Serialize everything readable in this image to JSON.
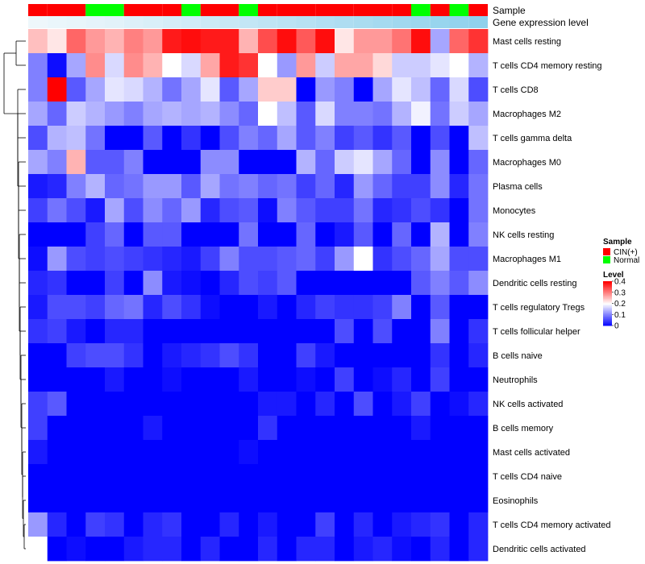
{
  "chart_data": {
    "type": "heatmap",
    "annotation_labels": [
      "Sample",
      "Gene expression level"
    ],
    "sample_groups": [
      "CIN",
      "CIN",
      "CIN",
      "N",
      "N",
      "CIN",
      "CIN",
      "CIN",
      "N",
      "CIN",
      "CIN",
      "N",
      "CIN",
      "CIN",
      "CIN",
      "CIN",
      "CIN",
      "CIN",
      "CIN",
      "CIN",
      "N",
      "CIN",
      "N",
      "CIN"
    ],
    "expression_annotation": [
      0.05,
      0.08,
      0.1,
      0.13,
      0.16,
      0.2,
      0.24,
      0.28,
      0.32,
      0.36,
      0.4,
      0.44,
      0.48,
      0.52,
      0.56,
      0.6,
      0.64,
      0.68,
      0.72,
      0.76,
      0.8,
      0.84,
      0.88,
      0.92
    ],
    "rows": [
      "Mast cells resting",
      "T cells CD4 memory resting",
      "T cells CD8",
      "Macrophages M2",
      "T cells gamma delta",
      "Macrophages M0",
      "Plasma cells",
      "Monocytes",
      "NK cells resting",
      "Macrophages M1",
      "Dendritic cells resting",
      "T cells regulatory  Tregs",
      "T cells follicular helper",
      "B cells naive",
      "Neutrophils",
      "NK cells activated",
      "B cells memory",
      "Mast cells activated",
      "T cells CD4 naive",
      "Eosinophils",
      "T cells CD4 memory activated",
      "Dendritic cells activated"
    ],
    "values": [
      [
        0.25,
        0.22,
        0.32,
        0.28,
        0.26,
        0.3,
        0.28,
        0.38,
        0.39,
        0.38,
        0.38,
        0.26,
        0.34,
        0.39,
        0.33,
        0.39,
        0.22,
        0.28,
        0.28,
        0.31,
        0.39,
        0.13,
        0.32,
        0.36
      ],
      [
        0.1,
        0.01,
        0.13,
        0.29,
        0.17,
        0.29,
        0.26,
        0.2,
        0.17,
        0.27,
        0.38,
        0.36,
        0.2,
        0.12,
        0.28,
        0.16,
        0.27,
        0.27,
        0.23,
        0.16,
        0.16,
        0.18,
        0.2,
        0.14
      ],
      [
        0.1,
        0.4,
        0.07,
        0.13,
        0.18,
        0.17,
        0.14,
        0.09,
        0.13,
        0.18,
        0.07,
        0.13,
        0.24,
        0.24,
        0.0,
        0.12,
        0.1,
        0.0,
        0.13,
        0.18,
        0.15,
        0.08,
        0.17,
        0.06
      ],
      [
        0.13,
        0.08,
        0.16,
        0.14,
        0.12,
        0.1,
        0.13,
        0.14,
        0.13,
        0.14,
        0.11,
        0.08,
        0.2,
        0.15,
        0.07,
        0.17,
        0.1,
        0.1,
        0.09,
        0.14,
        0.19,
        0.09,
        0.16,
        0.13
      ],
      [
        0.06,
        0.14,
        0.15,
        0.09,
        0.0,
        0.0,
        0.07,
        0.0,
        0.04,
        0.0,
        0.06,
        0.1,
        0.08,
        0.13,
        0.07,
        0.1,
        0.05,
        0.07,
        0.04,
        0.07,
        0.0,
        0.06,
        0.0,
        0.15
      ],
      [
        0.13,
        0.1,
        0.26,
        0.07,
        0.07,
        0.1,
        0.0,
        0.0,
        0.0,
        0.11,
        0.11,
        0.0,
        0.0,
        0.0,
        0.14,
        0.08,
        0.16,
        0.18,
        0.13,
        0.08,
        0.0,
        0.11,
        0.0,
        0.08
      ],
      [
        0.02,
        0.03,
        0.1,
        0.14,
        0.08,
        0.09,
        0.12,
        0.12,
        0.07,
        0.13,
        0.09,
        0.1,
        0.08,
        0.09,
        0.05,
        0.08,
        0.03,
        0.12,
        0.08,
        0.05,
        0.05,
        0.11,
        0.03,
        0.09
      ],
      [
        0.05,
        0.09,
        0.06,
        0.02,
        0.13,
        0.06,
        0.11,
        0.08,
        0.12,
        0.03,
        0.06,
        0.07,
        0.01,
        0.1,
        0.07,
        0.05,
        0.05,
        0.09,
        0.03,
        0.04,
        0.06,
        0.04,
        0.0,
        0.09
      ],
      [
        0.0,
        0.0,
        0.0,
        0.05,
        0.08,
        0.0,
        0.07,
        0.07,
        0.0,
        0.0,
        0.0,
        0.09,
        0.0,
        0.0,
        0.08,
        0.0,
        0.02,
        0.07,
        0.0,
        0.08,
        0.0,
        0.14,
        0.0,
        0.1
      ],
      [
        0.01,
        0.12,
        0.06,
        0.05,
        0.06,
        0.05,
        0.04,
        0.03,
        0.02,
        0.05,
        0.1,
        0.06,
        0.06,
        0.07,
        0.08,
        0.05,
        0.12,
        0.2,
        0.04,
        0.06,
        0.08,
        0.13,
        0.06,
        0.06
      ],
      [
        0.03,
        0.04,
        0.0,
        0.0,
        0.05,
        0.0,
        0.11,
        0.02,
        0.01,
        0.0,
        0.03,
        0.06,
        0.05,
        0.07,
        0.0,
        0.0,
        0.0,
        0.0,
        0.0,
        0.0,
        0.07,
        0.1,
        0.07,
        0.11
      ],
      [
        0.02,
        0.06,
        0.06,
        0.05,
        0.08,
        0.09,
        0.03,
        0.06,
        0.04,
        0.01,
        0.0,
        0.0,
        0.02,
        0.0,
        0.03,
        0.05,
        0.04,
        0.04,
        0.05,
        0.1,
        0.0,
        0.07,
        0.0,
        0.0
      ],
      [
        0.04,
        0.05,
        0.02,
        0.0,
        0.03,
        0.03,
        0.0,
        0.0,
        0.0,
        0.0,
        0.0,
        0.0,
        0.0,
        0.0,
        0.0,
        0.0,
        0.06,
        0.0,
        0.06,
        0.0,
        0.0,
        0.1,
        0.0,
        0.04
      ],
      [
        0.0,
        0.0,
        0.05,
        0.06,
        0.06,
        0.04,
        0.0,
        0.02,
        0.03,
        0.04,
        0.06,
        0.04,
        0.0,
        0.0,
        0.05,
        0.02,
        0.0,
        0.0,
        0.0,
        0.0,
        0.0,
        0.04,
        0.0,
        0.03
      ],
      [
        0.0,
        0.0,
        0.0,
        0.0,
        0.02,
        0.0,
        0.0,
        0.01,
        0.0,
        0.0,
        0.0,
        0.02,
        0.0,
        0.0,
        0.01,
        0.0,
        0.05,
        0.0,
        0.01,
        0.03,
        0.0,
        0.05,
        0.0,
        0.0
      ],
      [
        0.05,
        0.07,
        0.0,
        0.0,
        0.0,
        0.0,
        0.0,
        0.0,
        0.0,
        0.0,
        0.0,
        0.0,
        0.02,
        0.02,
        0.0,
        0.03,
        0.0,
        0.06,
        0.0,
        0.02,
        0.05,
        0.0,
        0.01,
        0.03
      ],
      [
        0.05,
        0.0,
        0.0,
        0.0,
        0.0,
        0.0,
        0.02,
        0.0,
        0.0,
        0.0,
        0.0,
        0.0,
        0.04,
        0.0,
        0.0,
        0.0,
        0.0,
        0.0,
        0.0,
        0.0,
        0.02,
        0.0,
        0.0,
        0.0
      ],
      [
        0.02,
        0.0,
        0.0,
        0.0,
        0.0,
        0.0,
        0.0,
        0.0,
        0.0,
        0.0,
        0.0,
        0.01,
        0.0,
        0.0,
        0.0,
        0.0,
        0.0,
        0.0,
        0.0,
        0.0,
        0.0,
        0.0,
        0.0,
        0.0
      ],
      [
        0.0,
        0.0,
        0.0,
        0.0,
        0.0,
        0.0,
        0.0,
        0.0,
        0.0,
        0.0,
        0.0,
        0.0,
        0.0,
        0.0,
        0.0,
        0.0,
        0.0,
        0.0,
        0.0,
        0.0,
        0.0,
        0.0,
        0.0,
        0.0
      ],
      [
        0.0,
        0.0,
        0.0,
        0.0,
        0.0,
        0.0,
        0.0,
        0.0,
        0.0,
        0.0,
        0.0,
        0.0,
        0.0,
        0.0,
        0.0,
        0.0,
        0.0,
        0.0,
        0.0,
        0.0,
        0.0,
        0.0,
        0.0,
        0.0
      ],
      [
        0.12,
        0.03,
        0.0,
        0.05,
        0.04,
        0.0,
        0.03,
        0.04,
        0.0,
        0.0,
        0.03,
        0.0,
        0.02,
        0.0,
        0.0,
        0.05,
        0.0,
        0.03,
        0.0,
        0.02,
        0.03,
        0.04,
        0.0,
        0.03
      ],
      [
        0.2,
        0.0,
        0.01,
        0.0,
        0.0,
        0.02,
        0.03,
        0.03,
        0.0,
        0.03,
        0.0,
        0.0,
        0.03,
        0.0,
        0.03,
        0.03,
        0.0,
        0.02,
        0.03,
        0.01,
        0.0,
        0.03,
        0.0,
        0.03
      ]
    ],
    "colors": {
      "low": "#0000ff",
      "mid": "#ffffff",
      "high": "#ff0000",
      "cin": "#ff0000",
      "normal": "#00ff00",
      "expr_low": "#f3f9fc",
      "expr_high": "#87ceeb"
    },
    "legend": {
      "sample_title": "Sample",
      "sample_entries": [
        {
          "label": "CIN(+)",
          "color": "#ff0000"
        },
        {
          "label": "Normal",
          "color": "#00ff00"
        }
      ],
      "level_title": "Level",
      "level_ticks": [
        "0.4",
        "0.3",
        "0.2",
        "0.1",
        "0"
      ],
      "placement": "right"
    },
    "value_range": [
      0,
      0.4
    ]
  }
}
